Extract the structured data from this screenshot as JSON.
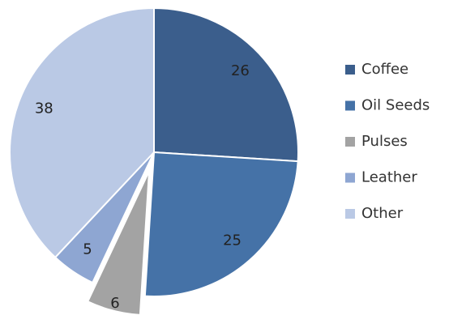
{
  "chart_data": {
    "type": "pie",
    "categories": [
      "Coffee",
      "Oil Seeds",
      "Pulses",
      "Leather",
      "Other"
    ],
    "values": [
      26,
      25,
      6,
      5,
      38
    ],
    "colors": [
      "#3b5e8c",
      "#4572a7",
      "#a3a3a3",
      "#8ea6d2",
      "#bac9e5"
    ],
    "explode": "Pulses",
    "legend": "right"
  }
}
